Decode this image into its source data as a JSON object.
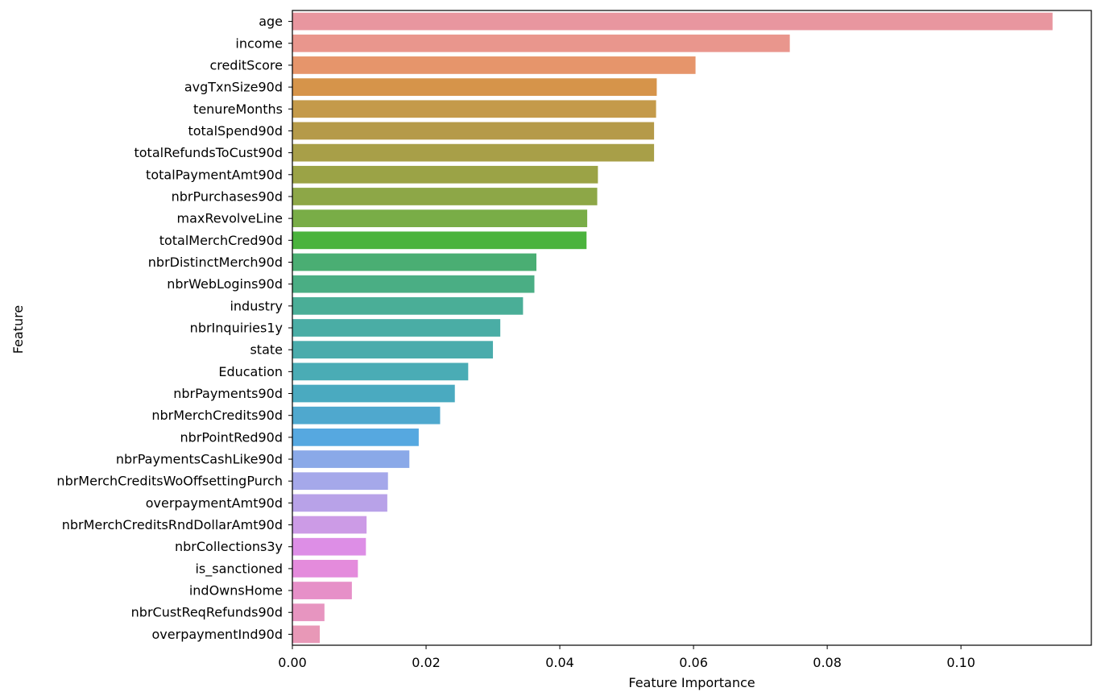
{
  "chart_data": {
    "type": "bar",
    "orientation": "horizontal",
    "xlabel": "Feature Importance",
    "ylabel": "Feature",
    "xlim": [
      0,
      0.1195
    ],
    "x_ticks": [
      0.0,
      0.02,
      0.04,
      0.06,
      0.08,
      0.1
    ],
    "x_tick_labels": [
      "0.00",
      "0.02",
      "0.04",
      "0.06",
      "0.08",
      "0.10"
    ],
    "grid": false,
    "categories": [
      "age",
      "income",
      "creditScore",
      "avgTxnSize90d",
      "tenureMonths",
      "totalSpend90d",
      "totalRefundsToCust90d",
      "totalPaymentAmt90d",
      "nbrPurchases90d",
      "maxRevolveLine",
      "totalMerchCred90d",
      "nbrDistinctMerch90d",
      "nbrWebLogins90d",
      "industry",
      "nbrInquiries1y",
      "state",
      "Education",
      "nbrPayments90d",
      "nbrMerchCredits90d",
      "nbrPointRed90d",
      "nbrPaymentsCashLike90d",
      "nbrMerchCreditsWoOffsettingPurch",
      "overpaymentAmt90d",
      "nbrMerchCreditsRndDollarAmt90d",
      "nbrCollections3y",
      "is_sanctioned",
      "indOwnsHome",
      "nbrCustReqRefunds90d",
      "overpaymentInd90d"
    ],
    "values": [
      0.1137,
      0.0744,
      0.0603,
      0.0545,
      0.0544,
      0.0541,
      0.0541,
      0.0457,
      0.0456,
      0.0441,
      0.044,
      0.0365,
      0.0362,
      0.0345,
      0.0311,
      0.03,
      0.0263,
      0.0243,
      0.0221,
      0.0189,
      0.0175,
      0.0143,
      0.0142,
      0.0111,
      0.011,
      0.0098,
      0.0089,
      0.0048,
      0.0041
    ],
    "colors": [
      "#e8969f",
      "#e9968d",
      "#e6956b",
      "#d6944a",
      "#c49a4a",
      "#b59a49",
      "#a89f48",
      "#9ba346",
      "#8da747",
      "#79ad47",
      "#4bb33d",
      "#4aae73",
      "#4aae84",
      "#4aae97",
      "#4aada5",
      "#4aacac",
      "#4aacb5",
      "#4aaac0",
      "#4fa8ce",
      "#56a8e0",
      "#8aa9e8",
      "#a5a8ea",
      "#b8a2e8",
      "#cc9be6",
      "#dd8ee6",
      "#e48bdc",
      "#e690c8",
      "#e795c0",
      "#e898b7"
    ]
  }
}
